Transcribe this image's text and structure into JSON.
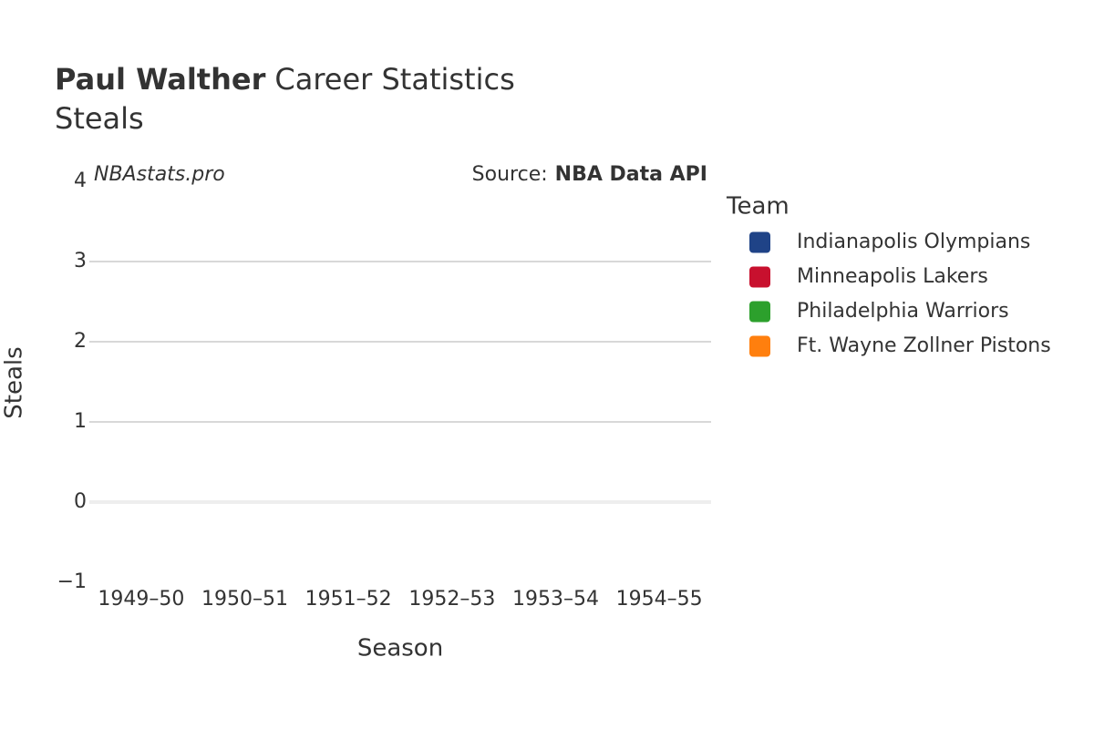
{
  "chart_data": {
    "type": "line",
    "title_bold": "Paul Walther",
    "title": "Career Statistics",
    "subtitle": "Steals",
    "watermark": "NBAstats.pro",
    "source_label": "Source:",
    "source": "NBA Data API",
    "x_label": "Season",
    "y_label": "Steals",
    "legend_title": "Team",
    "categories": [
      "1949–50",
      "1950–51",
      "1951–52",
      "1952–53",
      "1953–54",
      "1954–55"
    ],
    "series": [
      {
        "name": "Indianapolis Olympians",
        "color": "#1f4387",
        "values": [
          null,
          null,
          null,
          null,
          null,
          null
        ]
      },
      {
        "name": "Minneapolis Lakers",
        "color": "#c8102e",
        "values": [
          null,
          null,
          null,
          null,
          null,
          null
        ]
      },
      {
        "name": "Philadelphia Warriors",
        "color": "#2ca02c",
        "values": [
          null,
          null,
          null,
          null,
          null,
          null
        ]
      },
      {
        "name": "Ft. Wayne Zollner Pistons",
        "color": "#ff7f0e",
        "values": [
          null,
          null,
          null,
          null,
          null,
          null
        ]
      }
    ],
    "ylim": [
      -1,
      4
    ],
    "yticks": [
      {
        "value": -1,
        "label": "−1"
      },
      0,
      1,
      2,
      3,
      4
    ],
    "grid": true
  }
}
